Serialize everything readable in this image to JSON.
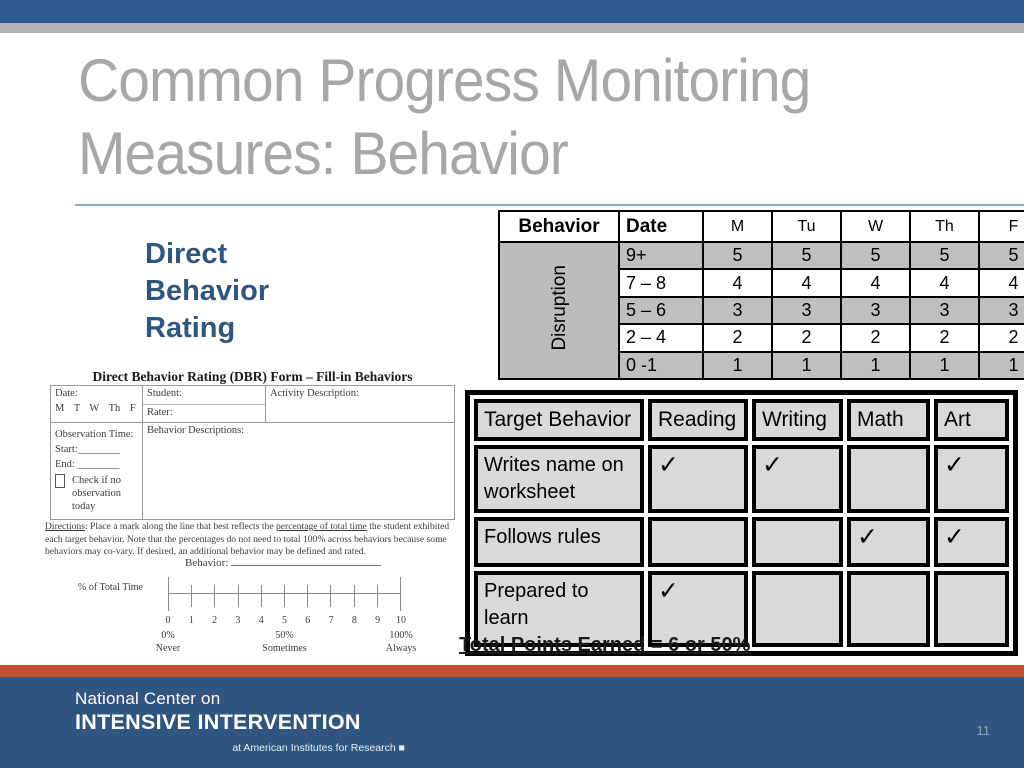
{
  "slide": {
    "title_line1": "Common Progress Monitoring",
    "title_line2": "Measures: Behavior",
    "page_number": "11"
  },
  "dbr_heading": {
    "line1": "Direct",
    "line2": "Behavior",
    "line3": "Rating"
  },
  "rating_table": {
    "col_headers": [
      "Behavior",
      "Date",
      "M",
      "Tu",
      "W",
      "Th",
      "F"
    ],
    "behavior_label": "Disruption",
    "rows": [
      {
        "range": "9+",
        "values": [
          5,
          5,
          5,
          5,
          5
        ]
      },
      {
        "range": "7 – 8",
        "values": [
          4,
          4,
          4,
          4,
          4
        ]
      },
      {
        "range": "5 – 6",
        "values": [
          3,
          3,
          3,
          3,
          3
        ]
      },
      {
        "range": "2 – 4",
        "values": [
          2,
          2,
          2,
          2,
          2
        ]
      },
      {
        "range": "0 -1",
        "values": [
          1,
          1,
          1,
          1,
          1
        ]
      }
    ]
  },
  "behavior_matrix": {
    "col_headers": [
      "Target Behavior",
      "Reading",
      "Writing",
      "Math",
      "Art"
    ],
    "rows": [
      {
        "label": "Writes name on worksheet",
        "checks": [
          "✓",
          "✓",
          "",
          "✓"
        ]
      },
      {
        "label": "Follows rules",
        "checks": [
          "",
          "",
          "✓",
          "✓"
        ]
      },
      {
        "label": "Prepared to learn",
        "checks": [
          "✓",
          "",
          "",
          ""
        ]
      }
    ]
  },
  "total_points": "Total Points Earned = 6 or 50%",
  "dbr_form": {
    "title": "Direct Behavior Rating (DBR) Form – Fill-in Behaviors",
    "date_label": "Date:",
    "days": "M T W Th F",
    "student_label": "Student:",
    "rater_label": "Rater:",
    "activity_label": "Activity Description:",
    "observation_label": "Observation Time:",
    "start_label": "Start:________",
    "end_label": "End: ________",
    "checkbox_label": "Check if no observation today",
    "behavior_desc_label": "Behavior Descriptions:",
    "directions_word": "Directions",
    "directions_part1": ":  Place a mark along the line that best reflects the ",
    "directions_underlined": "percentage of total time",
    "directions_part2": " the student exhibited each target behavior.  Note that the percentages do not need to total 100% across behaviors because some behaviors may co-vary. If desired, an additional behavior may be defined and rated.",
    "behavior_line_label": "Behavior:",
    "pct_label": "% of Total Time",
    "scale_numbers": [
      "0",
      "1",
      "2",
      "3",
      "4",
      "5",
      "6",
      "7",
      "8",
      "9",
      "10"
    ],
    "anchors": [
      {
        "pct": "0%",
        "word": "Never"
      },
      {
        "pct": "50%",
        "word": "Sometimes"
      },
      {
        "pct": "100%",
        "word": "Always"
      }
    ]
  },
  "footer": {
    "org_line1": "National Center on",
    "org_line2": "INTENSIVE INTERVENTION",
    "org_line3": "at American Institutes for Research ■"
  },
  "colors": {
    "top_bar": "#2d5a8c",
    "footer_bar": "#2f5580",
    "orange_divider": "#bf5130",
    "heading_blue": "#2f567e",
    "title_gray": "#a7a7a7",
    "table_row_gray": "#bfbfbf",
    "matrix_cell_gray": "#d9d9d9"
  }
}
